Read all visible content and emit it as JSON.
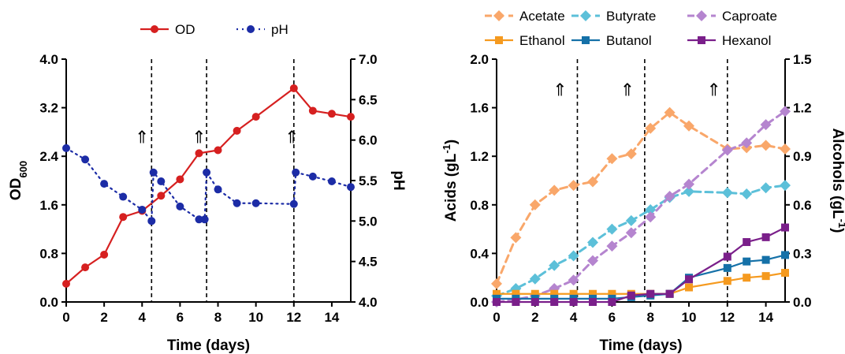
{
  "chart_data": [
    {
      "type": "line",
      "xlabel": "Time (days)",
      "xlim": [
        0,
        15
      ],
      "xticks": [
        0,
        2,
        4,
        6,
        8,
        10,
        12,
        14
      ],
      "y_left": {
        "label_main": "OD",
        "label_sub": "600",
        "lim": [
          0,
          4
        ],
        "ticks": [
          "0.0",
          "0.8",
          "1.6",
          "2.4",
          "3.2",
          "4.0"
        ]
      },
      "y_right": {
        "label": "pH",
        "lim": [
          4,
          7
        ],
        "ticks": [
          "4.0",
          "4.5",
          "5.0",
          "5.5",
          "6.0",
          "6.5",
          "7.0"
        ]
      },
      "vlines": [
        4.5,
        7.4,
        12
      ],
      "arrows": [
        {
          "x": 4.0,
          "y": 2.72,
          "text": "⇑"
        },
        {
          "x": 7.0,
          "y": 2.72,
          "text": "⇑"
        },
        {
          "x": 11.9,
          "y": 2.72,
          "text": "⇑"
        }
      ],
      "legend_position": "top",
      "series": [
        {
          "name": "OD",
          "axis": "left",
          "color": "#d62020",
          "style": "solid",
          "marker": "circle",
          "x": [
            0,
            1,
            2,
            3,
            4,
            5,
            6,
            7,
            8,
            9,
            10,
            12,
            13,
            14,
            15
          ],
          "y": [
            0.3,
            0.57,
            0.78,
            1.4,
            1.5,
            1.75,
            2.02,
            2.45,
            2.5,
            2.82,
            3.05,
            3.52,
            3.15,
            3.1,
            3.05
          ]
        },
        {
          "name": "pH",
          "axis": "right",
          "color": "#1c2ca6",
          "style": "dotted",
          "marker": "circle",
          "x": [
            0,
            1,
            2,
            3,
            4,
            4.5,
            4.6,
            5,
            6,
            7,
            7.3,
            7.4,
            8,
            9,
            10,
            12,
            12.1,
            13,
            14,
            15
          ],
          "y": [
            5.9,
            5.76,
            5.46,
            5.3,
            5.14,
            5.0,
            5.6,
            5.49,
            5.18,
            5.02,
            5.02,
            5.6,
            5.39,
            5.22,
            5.22,
            5.21,
            5.6,
            5.55,
            5.49,
            5.42
          ]
        }
      ]
    },
    {
      "type": "line",
      "xlabel": "Time (days)",
      "xlim": [
        0,
        15
      ],
      "xticks": [
        0,
        2,
        4,
        6,
        8,
        10,
        12,
        14
      ],
      "y_left": {
        "label": "Acids (gL",
        "sup": "-1",
        "close": ")",
        "lim": [
          0,
          2
        ],
        "ticks": [
          "0.0",
          "0.4",
          "0.8",
          "1.2",
          "1.6",
          "2.0"
        ]
      },
      "y_right": {
        "label": "Alcohols (gL",
        "sup": "-1",
        "close": ")",
        "lim": [
          0,
          1.5
        ],
        "ticks": [
          "0.0",
          "0.3",
          "0.6",
          "0.9",
          "1.2",
          "1.5"
        ]
      },
      "vlines": [
        4.2,
        7.7,
        12
      ],
      "arrows": [
        {
          "x": 3.3,
          "y": 1.75,
          "text": "⇑"
        },
        {
          "x": 6.8,
          "y": 1.75,
          "text": "⇑"
        },
        {
          "x": 11.3,
          "y": 1.75,
          "text": "⇑"
        }
      ],
      "legend_position": "top",
      "series": [
        {
          "name": "Acetate",
          "axis": "left",
          "color": "#f9a76a",
          "style": "dashed",
          "marker": "diamond",
          "x": [
            0,
            1,
            2,
            3,
            4,
            5,
            6,
            7,
            8,
            9,
            10,
            12,
            13,
            14,
            15
          ],
          "y": [
            0.15,
            0.53,
            0.8,
            0.92,
            0.96,
            0.99,
            1.18,
            1.22,
            1.43,
            1.56,
            1.45,
            1.26,
            1.27,
            1.29,
            1.26
          ]
        },
        {
          "name": "Butyrate",
          "axis": "left",
          "color": "#5cc0d9",
          "style": "dashed",
          "marker": "diamond",
          "x": [
            0,
            1,
            2,
            3,
            4,
            5,
            6,
            7,
            8,
            9,
            10,
            12,
            13,
            14,
            15
          ],
          "y": [
            0.05,
            0.11,
            0.19,
            0.3,
            0.38,
            0.49,
            0.6,
            0.67,
            0.76,
            0.86,
            0.91,
            0.9,
            0.89,
            0.94,
            0.96
          ]
        },
        {
          "name": "Caproate",
          "axis": "left",
          "color": "#b585cf",
          "style": "dashed",
          "marker": "diamond",
          "x": [
            0,
            1,
            2,
            3,
            4,
            5,
            6,
            7,
            8,
            9,
            10,
            12,
            13,
            14,
            15
          ],
          "y": [
            0.0,
            0.02,
            0.05,
            0.11,
            0.18,
            0.34,
            0.46,
            0.57,
            0.7,
            0.87,
            0.97,
            1.25,
            1.31,
            1.46,
            1.57
          ]
        },
        {
          "name": "Ethanol",
          "axis": "right",
          "color": "#f59a1f",
          "style": "solid",
          "marker": "square",
          "x": [
            0,
            1,
            2,
            3,
            4,
            5,
            6,
            7,
            8,
            9,
            10,
            12,
            13,
            14,
            15
          ],
          "y": [
            0.05,
            0.05,
            0.05,
            0.05,
            0.05,
            0.05,
            0.05,
            0.05,
            0.05,
            0.05,
            0.09,
            0.13,
            0.15,
            0.16,
            0.18
          ]
        },
        {
          "name": "Butanol",
          "axis": "right",
          "color": "#1571a8",
          "style": "solid",
          "marker": "square",
          "x": [
            0,
            1,
            2,
            3,
            4,
            5,
            6,
            7,
            8,
            9,
            10,
            12,
            13,
            14,
            15
          ],
          "y": [
            0.02,
            0.02,
            0.02,
            0.02,
            0.02,
            0.02,
            0.02,
            0.03,
            0.04,
            0.05,
            0.15,
            0.21,
            0.25,
            0.26,
            0.29
          ]
        },
        {
          "name": "Hexanol",
          "axis": "right",
          "color": "#7a1f8a",
          "style": "solid",
          "marker": "square",
          "x": [
            0,
            1,
            2,
            3,
            4,
            5,
            6,
            7,
            8,
            9,
            10,
            12,
            13,
            14,
            15
          ],
          "y": [
            0.0,
            0.0,
            0.0,
            0.0,
            0.0,
            0.0,
            0.0,
            0.04,
            0.05,
            0.05,
            0.14,
            0.28,
            0.37,
            0.4,
            0.46
          ]
        }
      ]
    }
  ]
}
